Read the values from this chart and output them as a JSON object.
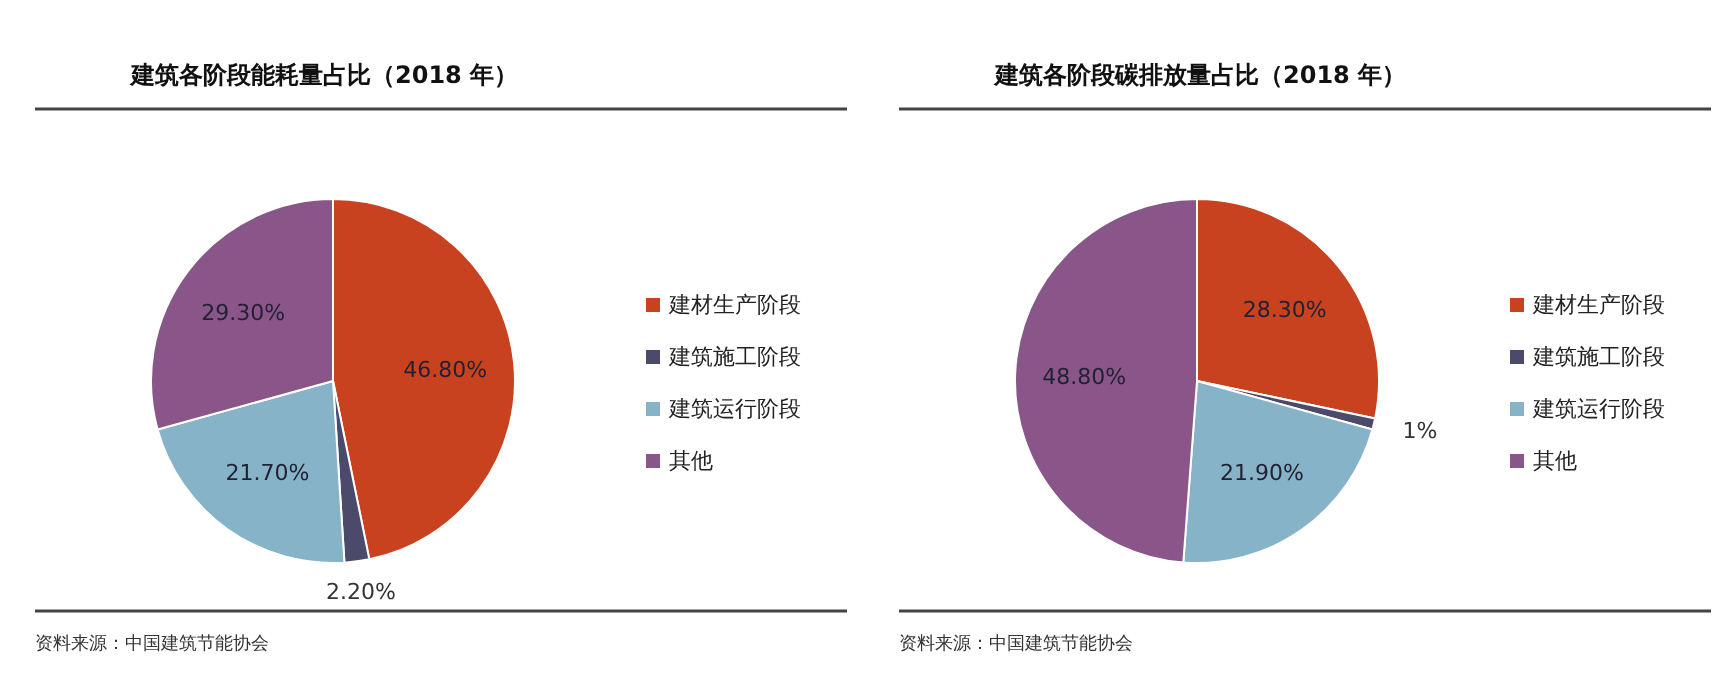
{
  "chart_data": [
    {
      "type": "pie",
      "title": "建筑各阶段能耗量占比（2018 年）",
      "categories": [
        "建材生产阶段",
        "建筑施工阶段",
        "建筑运行阶段",
        "其他"
      ],
      "values": [
        46.8,
        2.2,
        21.7,
        29.3
      ],
      "colors": [
        "#c9421f",
        "#4b4a6b",
        "#86b3c8",
        "#8a5589"
      ],
      "value_labels": [
        "46.80%",
        "2.20%",
        "21.70%",
        "29.30%"
      ],
      "legend": "right",
      "annotations": [
        "资料来源：中国建筑节能协会"
      ]
    },
    {
      "type": "pie",
      "title": "建筑各阶段碳排放量占比（2018 年）",
      "categories": [
        "建材生产阶段",
        "建筑施工阶段",
        "建筑运行阶段",
        "其他"
      ],
      "values": [
        28.3,
        1,
        21.9,
        48.8
      ],
      "colors": [
        "#c9421f",
        "#4b4a6b",
        "#86b3c8",
        "#8a5589"
      ],
      "value_labels": [
        "28.30%",
        "1%",
        "21.90%",
        "48.80%"
      ],
      "legend": "right",
      "annotations": [
        "资料来源：中国建筑节能协会"
      ]
    }
  ]
}
